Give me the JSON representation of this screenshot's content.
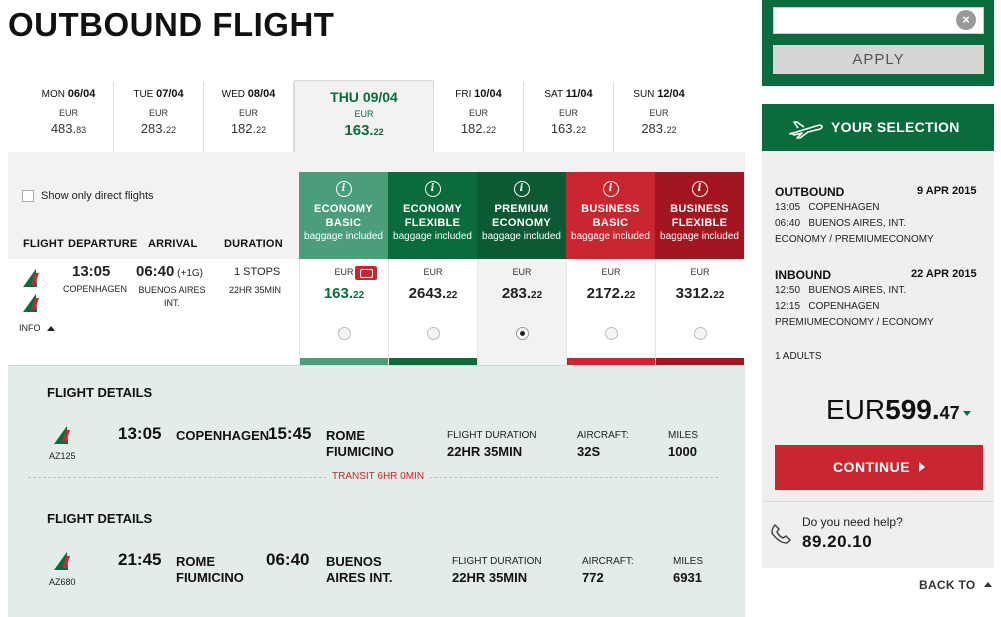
{
  "page_title": "OUTBOUND FLIGHT",
  "date_strip": [
    {
      "day": "MON",
      "date": "06/04",
      "currency": "EUR",
      "price_int": "483.",
      "price_dec": "83",
      "selected": false
    },
    {
      "day": "TUE",
      "date": "07/04",
      "currency": "EUR",
      "price_int": "283.",
      "price_dec": "22",
      "selected": false
    },
    {
      "day": "WED",
      "date": "08/04",
      "currency": "EUR",
      "price_int": "182.",
      "price_dec": "22",
      "selected": false
    },
    {
      "day": "THU",
      "date": "09/04",
      "currency": "EUR",
      "price_int": "163.",
      "price_dec": "22",
      "selected": true
    },
    {
      "day": "FRI",
      "date": "10/04",
      "currency": "EUR",
      "price_int": "182.",
      "price_dec": "22",
      "selected": false
    },
    {
      "day": "SAT",
      "date": "11/04",
      "currency": "EUR",
      "price_int": "163.",
      "price_dec": "22",
      "selected": false
    },
    {
      "day": "SUN",
      "date": "12/04",
      "currency": "EUR",
      "price_int": "283.",
      "price_dec": "22",
      "selected": false
    }
  ],
  "filters": {
    "direct_only_label": "Show only direct flights",
    "direct_only_checked": false
  },
  "columns": {
    "flight": "FLIGHT",
    "departure": "DEPARTURE",
    "arrival": "ARRIVAL",
    "duration": "DURATION"
  },
  "fares": [
    {
      "name1": "ECONOMY",
      "name2": "BASIC",
      "baggage": "baggage included",
      "color": "#4a9e7a",
      "currency": "EUR",
      "price_int": "163.",
      "price_dec": "22",
      "bar_color": "#4a9e7a",
      "selected": false,
      "cheapest_icon": true
    },
    {
      "name1": "ECONOMY",
      "name2": "FLEXIBLE",
      "baggage": "baggage included",
      "color": "#0a6b3d",
      "currency": "EUR",
      "price_int": "2643.",
      "price_dec": "22",
      "bar_color": "#0a6b3d",
      "selected": false,
      "cheapest_icon": false
    },
    {
      "name1": "PREMIUM",
      "name2": "ECONOMY",
      "baggage": "baggage included",
      "color": "#0b5a33",
      "currency": "EUR",
      "price_int": "283.",
      "price_dec": "22",
      "bar_color": "#f2f2f2",
      "selected": true,
      "cheapest_icon": false
    },
    {
      "name1": "BUSINESS",
      "name2": "BASIC",
      "baggage": "baggage included",
      "color": "#c9262f",
      "currency": "EUR",
      "price_int": "2172.",
      "price_dec": "22",
      "bar_color": "#c9262f",
      "selected": false,
      "cheapest_icon": false
    },
    {
      "name1": "BUSINESS",
      "name2": "FLEXIBLE",
      "baggage": "baggage included",
      "color": "#a3161f",
      "currency": "EUR",
      "price_int": "3312.",
      "price_dec": "22",
      "bar_color": "#a3161f",
      "selected": false,
      "cheapest_icon": false
    }
  ],
  "flight": {
    "depart_time": "13:05",
    "depart_city": "COPENHAGEN",
    "arrive_time": "06:40",
    "arrive_offset": "(+1G)",
    "arrive_city1": "BUENOS AIRES",
    "arrive_city2": "INT.",
    "stops": "1 STOPS",
    "duration": "22HR 35MIN",
    "info_label": "INFO"
  },
  "details": {
    "segment1": {
      "title": "FLIGHT DETAILS",
      "flight_no": "AZ125",
      "dep_time": "13:05",
      "dep_city": "COPENHAGEN",
      "arr_time": "15:45",
      "arr_city1": "ROME",
      "arr_city2": "FIUMICINO",
      "duration_label": "FLIGHT DURATION",
      "duration": "22HR 35MIN",
      "aircraft_label": "AIRCRAFT:",
      "aircraft": "32S",
      "miles_label": "MILES",
      "miles": "1000"
    },
    "transit": "TRANSIT 6HR 0MIN",
    "segment2": {
      "title": "FLIGHT DETAILS",
      "flight_no": "AZ680",
      "dep_time": "21:45",
      "dep_city1": "ROME",
      "dep_city2": "FIUMICINO",
      "arr_time": "06:40",
      "arr_city1": "BUENOS",
      "arr_city2": "AIRES INT.",
      "duration_label": "FLIGHT DURATION",
      "duration": "22HR 35MIN",
      "aircraft_label": "AIRCRAFT:",
      "aircraft": "772",
      "miles_label": "MILES",
      "miles": "6931"
    }
  },
  "promo": {
    "input_value": "",
    "clear_icon": "close-icon",
    "apply_label": "APPLY"
  },
  "selection": {
    "title": "YOUR SELECTION",
    "outbound": {
      "label": "OUTBOUND",
      "date": "9 APR 2015",
      "line1_time": "13:05",
      "line1_place": "COPENHAGEN",
      "line2_time": "06:40",
      "line2_place": "BUENOS AIRES, INT.",
      "cabin": "ECONOMY / PREMIUMECONOMY"
    },
    "inbound": {
      "label": "INBOUND",
      "date": "22 APR 2015",
      "line1_time": "12:50",
      "line1_place": "BUENOS AIRES, INT.",
      "line2_time": "12:15",
      "line2_place": "COPENHAGEN",
      "cabin": "PREMIUMECONOMY / ECONOMY"
    },
    "passengers": "1 ADULTS",
    "total_currency": "EUR",
    "total_int": "599.",
    "total_dec": "47",
    "continue_label": "CONTINUE",
    "help_question": "Do you need help?",
    "help_phone": "89.20.10"
  },
  "back_to": "BACK TO",
  "colors": {
    "brand_green": "#0a6b3d",
    "brand_red": "#c9262f",
    "detail_bg": "#e2ece8"
  }
}
